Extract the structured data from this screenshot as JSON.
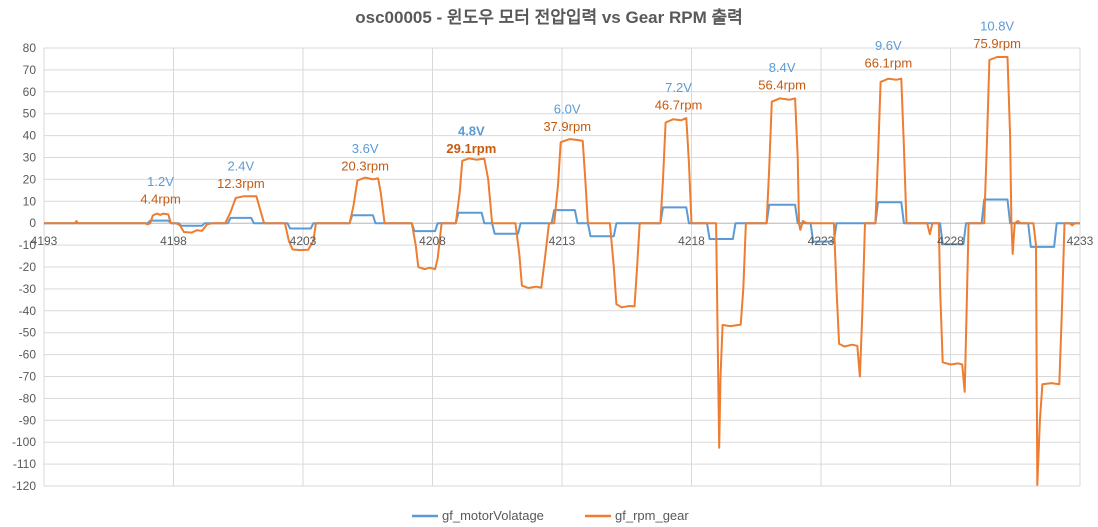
{
  "chart_data": {
    "type": "line",
    "title": "osc00005 - 윈도우 모터 전압입력 vs Gear RPM 출력",
    "xlabel": "",
    "ylabel": "",
    "xlim": [
      4193,
      4233
    ],
    "ylim": [
      -120,
      80
    ],
    "y_ticks": [
      80,
      70,
      60,
      50,
      40,
      30,
      20,
      10,
      0,
      -10,
      -20,
      -30,
      -40,
      -50,
      -60,
      -70,
      -80,
      -90,
      -100,
      -110,
      -120
    ],
    "x_ticks": [
      4193,
      4198,
      4203,
      4208,
      4213,
      4218,
      4223,
      4228,
      4233
    ],
    "grid": true,
    "legend_position": "bottom",
    "colors": {
      "voltage": "#5B9BD5",
      "rpm": "#ED7D31",
      "grid": "#D9D9D9",
      "text": "#595959"
    },
    "series": [
      {
        "name": "gf_motorVolatage",
        "points": [
          [
            4193.0,
            0
          ],
          [
            4197.0,
            0
          ],
          [
            4197.1,
            1.2
          ],
          [
            4197.8,
            1.2
          ],
          [
            4197.9,
            0
          ],
          [
            4198.2,
            0
          ],
          [
            4198.3,
            -1.2
          ],
          [
            4199.1,
            -1.2
          ],
          [
            4199.2,
            0
          ],
          [
            4200.1,
            0
          ],
          [
            4200.2,
            2.4
          ],
          [
            4201.0,
            2.4
          ],
          [
            4201.1,
            0
          ],
          [
            4202.4,
            0
          ],
          [
            4202.5,
            -2.4
          ],
          [
            4203.3,
            -2.4
          ],
          [
            4203.4,
            0
          ],
          [
            4204.8,
            0
          ],
          [
            4204.9,
            3.6
          ],
          [
            4205.7,
            3.6
          ],
          [
            4205.8,
            0
          ],
          [
            4207.2,
            0
          ],
          [
            4207.3,
            -3.6
          ],
          [
            4208.1,
            -3.6
          ],
          [
            4208.2,
            0
          ],
          [
            4208.9,
            0
          ],
          [
            4209.0,
            4.8
          ],
          [
            4209.9,
            4.8
          ],
          [
            4210.0,
            0
          ],
          [
            4210.3,
            0
          ],
          [
            4210.4,
            -4.8
          ],
          [
            4211.3,
            -4.8
          ],
          [
            4211.4,
            0
          ],
          [
            4212.6,
            0
          ],
          [
            4212.7,
            6.0
          ],
          [
            4213.5,
            6.0
          ],
          [
            4213.6,
            0
          ],
          [
            4214.0,
            0
          ],
          [
            4214.1,
            -6.0
          ],
          [
            4215.0,
            -6.0
          ],
          [
            4215.1,
            0
          ],
          [
            4216.8,
            0
          ],
          [
            4216.9,
            7.2
          ],
          [
            4217.8,
            7.2
          ],
          [
            4217.9,
            0
          ],
          [
            4218.6,
            0
          ],
          [
            4218.7,
            -7.2
          ],
          [
            4219.6,
            -7.2
          ],
          [
            4219.7,
            0
          ],
          [
            4220.9,
            0
          ],
          [
            4221.0,
            8.4
          ],
          [
            4222.0,
            8.4
          ],
          [
            4222.1,
            0
          ],
          [
            4222.6,
            0
          ],
          [
            4222.7,
            -8.4
          ],
          [
            4223.5,
            -8.4
          ],
          [
            4223.6,
            0
          ],
          [
            4225.1,
            0
          ],
          [
            4225.2,
            9.6
          ],
          [
            4226.1,
            9.6
          ],
          [
            4226.2,
            0
          ],
          [
            4227.6,
            0
          ],
          [
            4227.7,
            -9.6
          ],
          [
            4228.5,
            -9.6
          ],
          [
            4228.6,
            0
          ],
          [
            4229.2,
            0
          ],
          [
            4229.3,
            10.8
          ],
          [
            4230.2,
            10.8
          ],
          [
            4230.3,
            0
          ],
          [
            4231.0,
            0
          ],
          [
            4231.1,
            -10.8
          ],
          [
            4232.0,
            -10.8
          ],
          [
            4232.1,
            0
          ],
          [
            4233.0,
            0
          ]
        ]
      },
      {
        "name": "gf_rpm_gear",
        "points": [
          [
            4193.0,
            0
          ],
          [
            4194.2,
            0
          ],
          [
            4194.25,
            1
          ],
          [
            4194.3,
            0
          ],
          [
            4196.9,
            0
          ],
          [
            4197.0,
            -0.5
          ],
          [
            4197.1,
            0
          ],
          [
            4197.2,
            3.5
          ],
          [
            4197.35,
            4.4
          ],
          [
            4197.5,
            3.8
          ],
          [
            4197.6,
            4.4
          ],
          [
            4197.8,
            4.0
          ],
          [
            4197.9,
            0
          ],
          [
            4198.1,
            0
          ],
          [
            4198.25,
            -1
          ],
          [
            4198.4,
            -4.0
          ],
          [
            4198.7,
            -4.3
          ],
          [
            4198.9,
            -3.2
          ],
          [
            4199.1,
            -3.5
          ],
          [
            4199.3,
            -0.5
          ],
          [
            4199.5,
            0
          ],
          [
            4200.0,
            0
          ],
          [
            4200.2,
            5
          ],
          [
            4200.4,
            11.5
          ],
          [
            4200.7,
            12.3
          ],
          [
            4201.2,
            12.3
          ],
          [
            4201.35,
            6
          ],
          [
            4201.5,
            0
          ],
          [
            4202.3,
            0
          ],
          [
            4202.45,
            -8
          ],
          [
            4202.6,
            -12.0
          ],
          [
            4202.9,
            -12.3
          ],
          [
            4203.2,
            -12.1
          ],
          [
            4203.4,
            -8
          ],
          [
            4203.5,
            0
          ],
          [
            4204.8,
            0
          ],
          [
            4204.95,
            8
          ],
          [
            4205.1,
            19.5
          ],
          [
            4205.4,
            20.8
          ],
          [
            4205.7,
            20.0
          ],
          [
            4205.9,
            20.5
          ],
          [
            4206.0,
            14
          ],
          [
            4206.15,
            0
          ],
          [
            4207.2,
            0
          ],
          [
            4207.35,
            -10
          ],
          [
            4207.45,
            -20.0
          ],
          [
            4207.7,
            -21.0
          ],
          [
            4207.9,
            -20.3
          ],
          [
            4208.1,
            -21.0
          ],
          [
            4208.2,
            -16
          ],
          [
            4208.35,
            0
          ],
          [
            4208.9,
            0
          ],
          [
            4209.05,
            14
          ],
          [
            4209.15,
            28.5
          ],
          [
            4209.4,
            29.6
          ],
          [
            4209.7,
            29.0
          ],
          [
            4210.0,
            29.5
          ],
          [
            4210.15,
            20
          ],
          [
            4210.3,
            0
          ],
          [
            4210.5,
            0
          ],
          [
            4211.2,
            0
          ],
          [
            4211.35,
            -14
          ],
          [
            4211.45,
            -28.5
          ],
          [
            4211.7,
            -29.6
          ],
          [
            4212.0,
            -29.0
          ],
          [
            4212.2,
            -29.4
          ],
          [
            4212.35,
            -15
          ],
          [
            4212.5,
            0
          ],
          [
            4212.7,
            0
          ],
          [
            4212.85,
            18
          ],
          [
            4212.95,
            37.0
          ],
          [
            4213.3,
            38.4
          ],
          [
            4213.6,
            38.0
          ],
          [
            4213.8,
            37.6
          ],
          [
            4213.9,
            20
          ],
          [
            4214.0,
            0
          ],
          [
            4214.5,
            0
          ],
          [
            4214.85,
            0
          ],
          [
            4215.0,
            -20
          ],
          [
            4215.1,
            -37.0
          ],
          [
            4215.3,
            -38.4
          ],
          [
            4215.6,
            -37.8
          ],
          [
            4215.8,
            -38.0
          ],
          [
            4215.9,
            -20
          ],
          [
            4216.0,
            0
          ],
          [
            4216.8,
            0
          ],
          [
            4216.9,
            20
          ],
          [
            4217.0,
            46.0
          ],
          [
            4217.3,
            47.5
          ],
          [
            4217.6,
            47.0
          ],
          [
            4217.8,
            48.0
          ],
          [
            4217.9,
            28
          ],
          [
            4218.0,
            0
          ],
          [
            4218.5,
            0
          ],
          [
            4218.95,
            0
          ],
          [
            4219.02,
            -60
          ],
          [
            4219.07,
            -102.5
          ],
          [
            4219.12,
            -70
          ],
          [
            4219.2,
            -46.5
          ],
          [
            4219.5,
            -47.0
          ],
          [
            4219.9,
            -46.3
          ],
          [
            4220.0,
            -30
          ],
          [
            4220.1,
            0
          ],
          [
            4220.9,
            0
          ],
          [
            4221.0,
            25
          ],
          [
            4221.1,
            55.5
          ],
          [
            4221.4,
            57.0
          ],
          [
            4221.8,
            56.4
          ],
          [
            4222.0,
            57.0
          ],
          [
            4222.1,
            30
          ],
          [
            4222.15,
            0
          ],
          [
            4222.2,
            -3
          ],
          [
            4222.3,
            1
          ],
          [
            4222.45,
            0
          ],
          [
            4222.9,
            0
          ],
          [
            4223.5,
            0
          ],
          [
            4223.6,
            -30
          ],
          [
            4223.7,
            -55.0
          ],
          [
            4223.9,
            -56.3
          ],
          [
            4224.2,
            -55.5
          ],
          [
            4224.4,
            -56.0
          ],
          [
            4224.5,
            -70.0
          ],
          [
            4224.6,
            -40
          ],
          [
            4224.7,
            0
          ],
          [
            4225.1,
            0
          ],
          [
            4225.2,
            30
          ],
          [
            4225.3,
            64.5
          ],
          [
            4225.6,
            66.0
          ],
          [
            4225.9,
            65.5
          ],
          [
            4226.1,
            66.0
          ],
          [
            4226.2,
            35
          ],
          [
            4226.3,
            0
          ],
          [
            4227.1,
            0
          ],
          [
            4227.2,
            -5
          ],
          [
            4227.3,
            0
          ],
          [
            4227.55,
            0
          ],
          [
            4227.6,
            -30
          ],
          [
            4227.7,
            -63.5
          ],
          [
            4228.0,
            -64.5
          ],
          [
            4228.3,
            -64.0
          ],
          [
            4228.45,
            -64.5
          ],
          [
            4228.55,
            -77.0
          ],
          [
            4228.62,
            -40
          ],
          [
            4228.7,
            0
          ],
          [
            4229.3,
            0
          ],
          [
            4229.4,
            35
          ],
          [
            4229.5,
            74.5
          ],
          [
            4229.8,
            75.9
          ],
          [
            4230.2,
            75.9
          ],
          [
            4230.3,
            40
          ],
          [
            4230.35,
            0
          ],
          [
            4230.4,
            -14
          ],
          [
            4230.48,
            0
          ],
          [
            4230.6,
            1
          ],
          [
            4230.7,
            0
          ],
          [
            4231.2,
            0
          ],
          [
            4231.3,
            -10
          ],
          [
            4231.35,
            -119.5
          ],
          [
            4231.45,
            -90
          ],
          [
            4231.55,
            -73.5
          ],
          [
            4231.9,
            -73.0
          ],
          [
            4232.2,
            -73.5
          ],
          [
            4232.3,
            -40
          ],
          [
            4232.4,
            0
          ],
          [
            4232.6,
            0
          ],
          [
            4232.7,
            -1
          ],
          [
            4232.8,
            0
          ],
          [
            4233.0,
            0
          ]
        ]
      }
    ],
    "annotations": [
      {
        "voltage": "1.2V",
        "rpm": "4.4rpm",
        "x": 4197.5,
        "v_y": 17,
        "r_y": 9,
        "bold": false
      },
      {
        "voltage": "2.4V",
        "rpm": "12.3rpm",
        "x": 4200.6,
        "v_y": 24,
        "r_y": 16,
        "bold": false
      },
      {
        "voltage": "3.6V",
        "rpm": "20.3rpm",
        "x": 4205.4,
        "v_y": 32,
        "r_y": 24,
        "bold": false
      },
      {
        "voltage": "4.8V",
        "rpm": "29.1rpm",
        "x": 4209.5,
        "v_y": 40,
        "r_y": 32,
        "bold": true
      },
      {
        "voltage": "6.0V",
        "rpm": "37.9rpm",
        "x": 4213.2,
        "v_y": 50,
        "r_y": 42,
        "bold": false
      },
      {
        "voltage": "7.2V",
        "rpm": "46.7rpm",
        "x": 4217.5,
        "v_y": 60,
        "r_y": 52,
        "bold": false
      },
      {
        "voltage": "8.4V",
        "rpm": "56.4rpm",
        "x": 4221.5,
        "v_y": 69,
        "r_y": 61,
        "bold": false
      },
      {
        "voltage": "9.6V",
        "rpm": "66.1rpm",
        "x": 4225.6,
        "v_y": 79,
        "r_y": 71,
        "bold": false
      },
      {
        "voltage": "10.8V",
        "rpm": "75.9rpm",
        "x": 4229.8,
        "v_y": 88,
        "r_y": 80,
        "bold": false
      }
    ]
  }
}
